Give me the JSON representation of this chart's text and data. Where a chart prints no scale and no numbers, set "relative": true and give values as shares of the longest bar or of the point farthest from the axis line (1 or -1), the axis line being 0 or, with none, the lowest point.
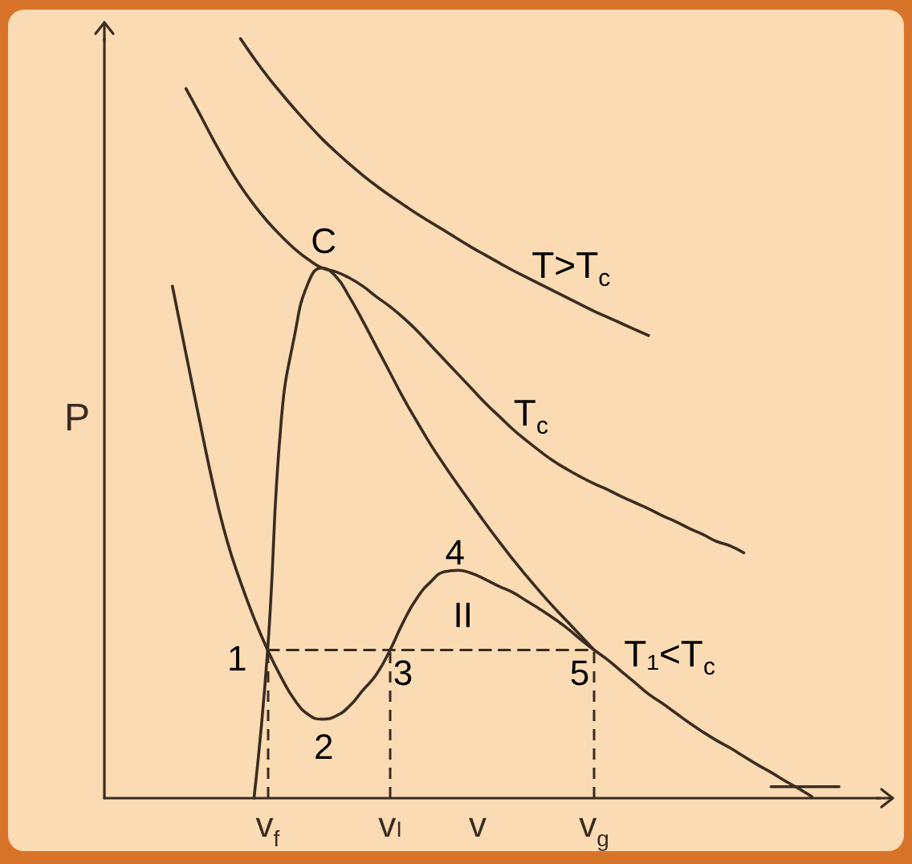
{
  "chart_data": {
    "type": "line",
    "relative": true,
    "xlabel": "v",
    "ylabel": "P",
    "marker": "none",
    "categories": [
      null,
      null,
      null,
      null,
      null,
      null,
      null,
      null,
      null,
      null,
      null,
      null,
      "v$_{f}$",
      null,
      null,
      null,
      null,
      null,
      null,
      null,
      null,
      "vₗ",
      null,
      null,
      null,
      null,
      null,
      null,
      null,
      null,
      null,
      null,
      null,
      null,
      null,
      null,
      "v$_{g}$",
      null,
      null,
      null,
      null,
      null,
      null,
      null,
      null,
      null,
      null,
      null,
      null,
      null,
      null,
      null,
      null,
      null,
      null,
      null,
      null,
      null
    ],
    "series": [
      {
        "name": "T>T$_{c}$",
        "color": "#3a2c20",
        "values": [
          null,
          null,
          null,
          null,
          null,
          null,
          null,
          null,
          null,
          null,
          1,
          0.974,
          0.95,
          0.928,
          0.907,
          0.887,
          0.868,
          0.851,
          0.835,
          0.82,
          0.806,
          0.793,
          0.781,
          0.769,
          0.758,
          0.747,
          0.736,
          0.725,
          0.715,
          0.705,
          0.695,
          0.686,
          0.677,
          0.668,
          0.659,
          0.65,
          0.641,
          0.633,
          0.625,
          0.617,
          0.609,
          null,
          null,
          null,
          null,
          null,
          null,
          null,
          null,
          null,
          null,
          null,
          null,
          null,
          null,
          null,
          null,
          null
        ]
      },
      {
        "name": "T$_{c}$",
        "color": "#3a2c20",
        "values": [
          null,
          null,
          null,
          null,
          null,
          null,
          0.934,
          0.901,
          0.867,
          0.835,
          0.806,
          0.781,
          0.759,
          0.74,
          0.723,
          0.709,
          0.698,
          0.693,
          0.685,
          0.674,
          0.66,
          0.647,
          0.632,
          0.615,
          0.596,
          0.577,
          0.558,
          0.539,
          0.52,
          0.503,
          0.486,
          0.471,
          0.457,
          0.444,
          0.433,
          0.423,
          0.414,
          0.406,
          0.397,
          0.389,
          0.381,
          0.372,
          0.364,
          0.355,
          0.347,
          0.338,
          0.332,
          0.323,
          null,
          null,
          null,
          null,
          null,
          null,
          null,
          null,
          null,
          null
        ]
      },
      {
        "name": "T₁<T$_{c}$",
        "color": "#3a2c20",
        "values": [
          null,
          null,
          null,
          null,
          null,
          0.674,
          0.585,
          0.497,
          0.412,
          0.34,
          0.285,
          0.237,
          0.195,
          0.159,
          0.129,
          0.11,
          0.104,
          0.108,
          0.121,
          0.142,
          0.163,
          0.195,
          0.233,
          0.264,
          0.285,
          0.298,
          0.3,
          0.296,
          0.288,
          0.279,
          0.271,
          0.26,
          0.249,
          0.237,
          0.224,
          0.209,
          0.195,
          0.182,
          0.167,
          0.152,
          0.137,
          0.125,
          0.112,
          0.099,
          0.087,
          0.076,
          0.066,
          0.055,
          0.044,
          0.034,
          0.023,
          0.013,
          0.002,
          null,
          null,
          null,
          null,
          null
        ]
      },
      {
        "color": "#3a2c20",
        "values": [
          null,
          null,
          null,
          null,
          null,
          null,
          null,
          null,
          null,
          null,
          null,
          0,
          0.195,
          0.497,
          0.611,
          0.679,
          0.698,
          0.687,
          0.66,
          0.628,
          0.594,
          0.56,
          0.526,
          0.495,
          0.465,
          0.438,
          0.412,
          0.387,
          0.362,
          0.338,
          0.315,
          0.293,
          0.272,
          0.252,
          0.233,
          0.214,
          0.195,
          null,
          null,
          null,
          null,
          null,
          null,
          null,
          null,
          null,
          null,
          null,
          null,
          null,
          null,
          null,
          null,
          null,
          null,
          null,
          null,
          null
        ]
      },
      {
        "color": "#3a2c20",
        "line_style": "dashed",
        "values": [
          null,
          null,
          null,
          null,
          null,
          null,
          null,
          null,
          null,
          null,
          null,
          null,
          0.195,
          0.195,
          0.195,
          0.195,
          0.195,
          0.195,
          0.195,
          0.195,
          0.195,
          0.195,
          0.195,
          0.195,
          0.195,
          0.195,
          0.195,
          0.195,
          0.195,
          0.195,
          0.195,
          0.195,
          0.195,
          0.195,
          0.195,
          0.195,
          0.195,
          null,
          null,
          null,
          null,
          null,
          null,
          null,
          null,
          null,
          null,
          null,
          null,
          null,
          null,
          null,
          null,
          null,
          null,
          null,
          null,
          null
        ]
      },
      {
        "color": "#3a2c20",
        "values": [
          null,
          null,
          null,
          null,
          null,
          null,
          null,
          null,
          null,
          null,
          null,
          null,
          null,
          null,
          null,
          null,
          null,
          null,
          null,
          null,
          null,
          null,
          null,
          null,
          null,
          null,
          null,
          null,
          null,
          null,
          null,
          null,
          null,
          null,
          null,
          null,
          null,
          null,
          null,
          null,
          null,
          null,
          null,
          null,
          null,
          null,
          null,
          null,
          null,
          0.015,
          0.015,
          0.015,
          0.015,
          0.015,
          0.015,
          null,
          null,
          null
        ]
      }
    ],
    "ref_lines": [
      {
        "axis": "x",
        "value": "v$_{f}$",
        "line_style": "dashed",
        "color": "#3a2c20"
      },
      {
        "axis": "x",
        "value": "vₗ",
        "line_style": "dashed",
        "color": "#3a2c20"
      },
      {
        "axis": "x",
        "value": "v$_{g}$",
        "line_style": "dashed",
        "color": "#3a2c20"
      }
    ],
    "annotations": [
      "C",
      "1",
      "2",
      "3",
      "4",
      "5",
      "II"
    ]
  }
}
